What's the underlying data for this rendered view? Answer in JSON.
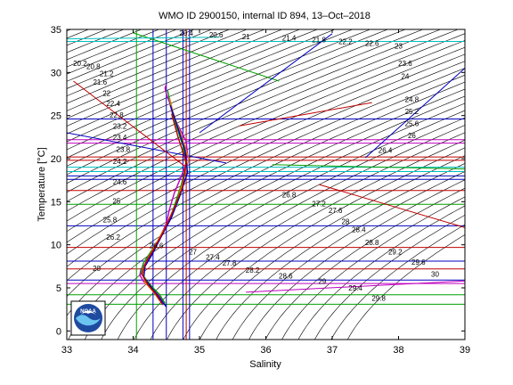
{
  "chart_data": {
    "type": "line",
    "title": "WMO ID 2900150, internal ID 894, 13–Oct–2018",
    "xlabel": "Salinity",
    "ylabel": "Temperature [°C]",
    "xlim": [
      33,
      39
    ],
    "ylim": [
      -1,
      35
    ],
    "xticks": [
      "33",
      "34",
      "35",
      "36",
      "37",
      "38",
      "39"
    ],
    "yticks": [
      "0",
      "5",
      "10",
      "15",
      "20",
      "25",
      "30",
      "35"
    ],
    "grid": false,
    "logo": "NOAA",
    "density_contours": {
      "sigma_min": 20.0,
      "sigma_max": 30.0,
      "sigma_step": 0.2,
      "labels": [
        {
          "text": "20",
          "s": 33.45,
          "t": 7.2
        },
        {
          "text": "20.2",
          "s": 33.2,
          "t": 31.0
        },
        {
          "text": "20.4",
          "s": 34.8,
          "t": 34.5
        },
        {
          "text": "20.6",
          "s": 35.25,
          "t": 34.3
        },
        {
          "text": "20.8",
          "s": 33.4,
          "t": 30.6
        },
        {
          "text": "21",
          "s": 35.7,
          "t": 34.1
        },
        {
          "text": "21.2",
          "s": 33.6,
          "t": 29.8
        },
        {
          "text": "21.4",
          "s": 36.35,
          "t": 33.9
        },
        {
          "text": "21.6",
          "s": 33.5,
          "t": 28.8
        },
        {
          "text": "21.8",
          "s": 36.8,
          "t": 33.7
        },
        {
          "text": "22",
          "s": 33.6,
          "t": 27.5
        },
        {
          "text": "22.2",
          "s": 37.2,
          "t": 33.5
        },
        {
          "text": "22.4",
          "s": 33.7,
          "t": 26.3
        },
        {
          "text": "22.6",
          "s": 37.6,
          "t": 33.3
        },
        {
          "text": "22.8",
          "s": 33.75,
          "t": 25.0
        },
        {
          "text": "23",
          "s": 38.0,
          "t": 33.0
        },
        {
          "text": "23.2",
          "s": 33.8,
          "t": 23.7
        },
        {
          "text": "23.4",
          "s": 33.8,
          "t": 22.4
        },
        {
          "text": "23.6",
          "s": 38.1,
          "t": 31.0
        },
        {
          "text": "23.8",
          "s": 33.85,
          "t": 21.0
        },
        {
          "text": "24",
          "s": 38.1,
          "t": 29.5
        },
        {
          "text": "24.2",
          "s": 33.8,
          "t": 19.6
        },
        {
          "text": "24.6",
          "s": 33.8,
          "t": 17.2
        },
        {
          "text": "24.8",
          "s": 38.2,
          "t": 26.8
        },
        {
          "text": "25",
          "s": 33.75,
          "t": 15.0
        },
        {
          "text": "25.2",
          "s": 38.2,
          "t": 25.4
        },
        {
          "text": "25.6",
          "s": 38.2,
          "t": 24.0
        },
        {
          "text": "25.8",
          "s": 33.65,
          "t": 12.8
        },
        {
          "text": "26",
          "s": 38.2,
          "t": 22.6
        },
        {
          "text": "26.2",
          "s": 33.7,
          "t": 10.8
        },
        {
          "text": "26.4",
          "s": 37.8,
          "t": 20.9
        },
        {
          "text": "26.6",
          "s": 34.35,
          "t": 9.8
        },
        {
          "text": "26.8",
          "s": 36.35,
          "t": 15.7
        },
        {
          "text": "27",
          "s": 34.9,
          "t": 9.1
        },
        {
          "text": "27.2",
          "s": 36.8,
          "t": 14.7
        },
        {
          "text": "27.4",
          "s": 35.2,
          "t": 8.5
        },
        {
          "text": "27.6",
          "s": 37.05,
          "t": 13.9
        },
        {
          "text": "27.8",
          "s": 35.45,
          "t": 7.8
        },
        {
          "text": "28",
          "s": 37.2,
          "t": 12.6
        },
        {
          "text": "28.2",
          "s": 35.8,
          "t": 7.0
        },
        {
          "text": "28.4",
          "s": 37.4,
          "t": 11.7
        },
        {
          "text": "28.6",
          "s": 36.3,
          "t": 6.3
        },
        {
          "text": "28.8",
          "s": 37.6,
          "t": 10.2
        },
        {
          "text": "29",
          "s": 36.85,
          "t": 5.7
        },
        {
          "text": "29.2",
          "s": 37.95,
          "t": 9.1
        },
        {
          "text": "29.4",
          "s": 37.35,
          "t": 4.9
        },
        {
          "text": "29.6",
          "s": 38.3,
          "t": 7.9
        },
        {
          "text": "29.8",
          "s": 37.7,
          "t": 3.7
        },
        {
          "text": "30",
          "s": 38.55,
          "t": 6.5
        }
      ]
    },
    "series": [
      {
        "color": "#c000c0",
        "x": [
          34.45,
          34.42,
          34.35,
          34.25,
          34.15,
          34.1,
          34.12,
          34.2,
          34.3,
          34.4,
          34.5,
          34.55,
          34.62,
          34.7,
          34.78,
          34.82,
          34.8,
          34.7,
          34.6,
          34.55,
          34.5,
          34.48,
          34.5
        ],
        "y": [
          3.0,
          3.8,
          4.5,
          5.2,
          5.8,
          6.5,
          7.2,
          8.0,
          9.2,
          10.8,
          12.5,
          14.2,
          16.0,
          17.5,
          19.0,
          20.5,
          22.0,
          23.5,
          25.0,
          26.5,
          27.5,
          28.2,
          28.6
        ]
      },
      {
        "color": "#00a000",
        "x": [
          34.48,
          34.4,
          34.3,
          34.2,
          34.12,
          34.15,
          34.25,
          34.38,
          34.52,
          34.62,
          34.72,
          34.8,
          34.75,
          34.65,
          34.58,
          34.52
        ],
        "y": [
          3.2,
          4.2,
          5.0,
          5.9,
          6.8,
          7.8,
          9.0,
          10.5,
          12.4,
          14.5,
          16.8,
          19.2,
          21.5,
          23.8,
          25.8,
          27.9
        ]
      },
      {
        "color": "#e08000",
        "x": [
          34.4,
          34.3,
          34.18,
          34.14,
          34.22,
          34.35,
          34.5,
          34.66,
          34.76,
          34.84,
          34.72,
          34.6,
          34.55
        ],
        "y": [
          3.5,
          4.6,
          5.6,
          7.0,
          8.4,
          10.2,
          12.3,
          15.0,
          17.6,
          20.0,
          22.8,
          25.4,
          27.0
        ]
      },
      {
        "color": "#0000c0",
        "x": [
          34.5,
          34.38,
          34.26,
          34.16,
          34.18,
          34.28,
          34.42,
          34.58,
          34.7,
          34.82,
          34.78,
          34.66,
          34.56
        ],
        "y": [
          2.8,
          4.0,
          5.2,
          6.2,
          7.5,
          8.8,
          10.9,
          13.2,
          15.6,
          18.4,
          21.0,
          23.9,
          26.2
        ]
      },
      {
        "color": "#c00000",
        "x": [
          34.44,
          34.34,
          34.22,
          34.13,
          34.2,
          34.32,
          34.46,
          34.6,
          34.74,
          34.8,
          34.68,
          34.58
        ],
        "y": [
          3.1,
          4.3,
          5.4,
          6.6,
          8.1,
          9.6,
          11.6,
          13.9,
          16.6,
          19.6,
          22.4,
          25.2
        ]
      }
    ],
    "vertical_lines": [
      {
        "color": "#0000c0",
        "s": 34.3
      },
      {
        "color": "#0000c0",
        "s": 34.5
      },
      {
        "color": "#0000c0",
        "s": 34.75
      },
      {
        "color": "#0000c0",
        "s": 34.85
      },
      {
        "color": "#00a000",
        "s": 34.05
      },
      {
        "color": "#c00000",
        "s": 34.8
      }
    ],
    "horizontal_lines": [
      {
        "color": "#c00000",
        "t": 19.8
      },
      {
        "color": "#c00000",
        "t": 20.2
      },
      {
        "color": "#0000c0",
        "t": 17.6
      },
      {
        "color": "#0000c0",
        "t": 18.0
      },
      {
        "color": "#00c0c0",
        "t": 19.0
      },
      {
        "color": "#00c0c0",
        "t": 18.5
      },
      {
        "color": "#c000c0",
        "t": 22.2
      },
      {
        "color": "#c000c0",
        "t": 21.8
      },
      {
        "color": "#c00000",
        "t": 16.3
      },
      {
        "color": "#0000c0",
        "t": 12.2
      },
      {
        "color": "#00a000",
        "t": 14.7
      },
      {
        "color": "#c00000",
        "t": 9.7
      },
      {
        "color": "#0000c0",
        "t": 8.1
      },
      {
        "color": "#c00000",
        "t": 7.2
      },
      {
        "color": "#0000c0",
        "t": 5.9
      },
      {
        "color": "#c000c0",
        "t": 5.5
      },
      {
        "color": "#00a000",
        "t": 4.2
      },
      {
        "color": "#0000c0",
        "t": 24.6
      },
      {
        "color": "#00c0c0",
        "t": 33.6
      },
      {
        "color": "#00a000",
        "t": 3.1
      }
    ],
    "diagonal_lines": [
      {
        "color": "#0000c0",
        "s1": 33.0,
        "t1": 23.0,
        "s2": 35.4,
        "t2": 19.5
      },
      {
        "color": "#c00000",
        "s1": 33.1,
        "t1": 29.0,
        "s2": 34.8,
        "t2": 19.0
      },
      {
        "color": "#00a000",
        "s1": 36.1,
        "t1": 19.3,
        "s2": 39.0,
        "t2": 18.8
      },
      {
        "color": "#c00000",
        "s1": 35.6,
        "t1": 23.8,
        "s2": 37.6,
        "t2": 26.5
      },
      {
        "color": "#0000c0",
        "s1": 37.5,
        "t1": 20.1,
        "s2": 39.0,
        "t2": 30.5
      },
      {
        "color": "#c00000",
        "s1": 36.8,
        "t1": 17.0,
        "s2": 39.0,
        "t2": 12.0
      },
      {
        "color": "#00a000",
        "s1": 34.0,
        "t1": 34.6,
        "s2": 36.2,
        "t2": 29.0
      },
      {
        "color": "#0000c0",
        "s1": 35.0,
        "t1": 23.0,
        "s2": 37.0,
        "t2": 34.5
      },
      {
        "color": "#00c0c0",
        "s1": 33.0,
        "t1": 33.9,
        "s2": 35.3,
        "t2": 34.1
      },
      {
        "color": "#c000c0",
        "s1": 35.7,
        "t1": 4.5,
        "s2": 39.0,
        "t2": 5.8
      }
    ]
  }
}
